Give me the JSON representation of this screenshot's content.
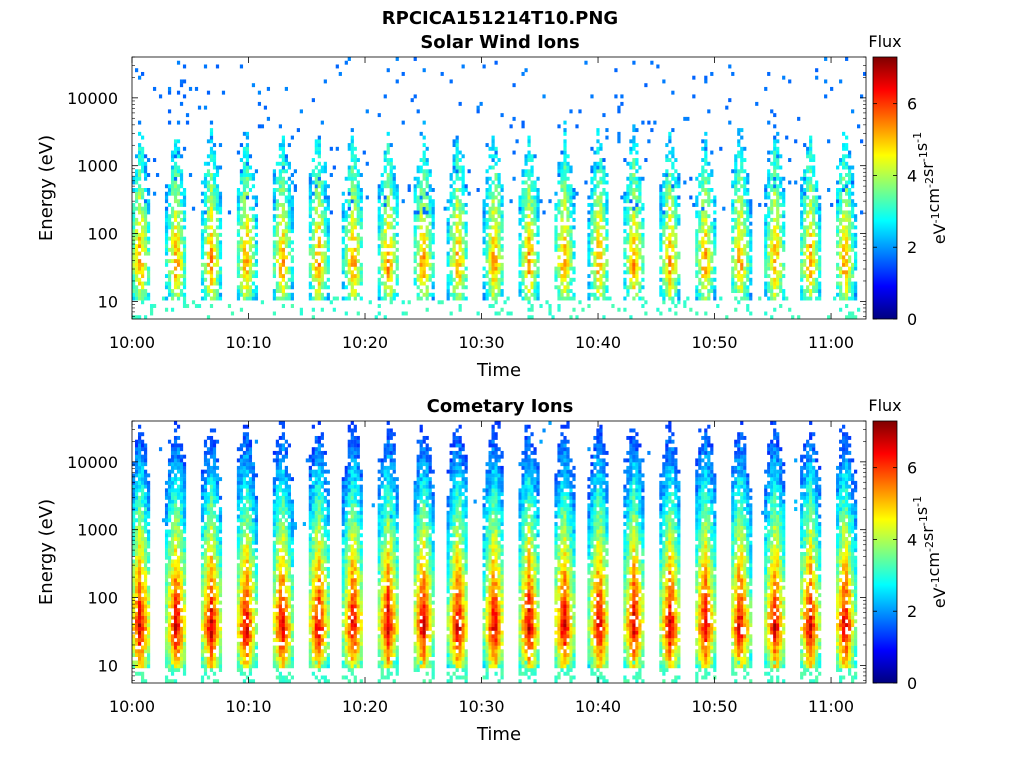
{
  "figure": {
    "filename_title": "RPCICA151214T10.PNG"
  },
  "colorbar": {
    "colormap": "jet",
    "label_parts": [
      "eV",
      "-1",
      "cm",
      "-2",
      "sr",
      "-1",
      "s",
      "-1"
    ],
    "title": "Flux",
    "range": [
      0,
      7.3
    ],
    "ticks": [
      "0",
      "2",
      "4",
      "6"
    ]
  },
  "chart_data": [
    {
      "type": "heatmap",
      "title": "Solar Wind Ions",
      "xlabel": "Time",
      "ylabel": "Energy (eV)",
      "x_ticks": [
        "10:00",
        "10:10",
        "10:20",
        "10:30",
        "10:40",
        "10:50",
        "11:00"
      ],
      "x_range_minutes_from_10_00": [
        0,
        63
      ],
      "y_scale": "log",
      "y_ticks": [
        "10",
        "100",
        "1000",
        "10000"
      ],
      "y_range": [
        5.5,
        40000
      ],
      "colorbar_label": "eV^-1 cm^-2 sr^-1 s^-1",
      "colorbar_title": "Flux",
      "scan_times_minutes": [
        0.7,
        3.8,
        6.8,
        9.8,
        12.9,
        16.0,
        19.0,
        22.0,
        25.0,
        28.0,
        31.1,
        34.1,
        37.1,
        40.1,
        43.1,
        46.2,
        49.2,
        52.2,
        55.2,
        58.2,
        61.2
      ],
      "peak_flux": 5.6,
      "background_flux": 1.6,
      "peak_energy_eV": 35
    },
    {
      "type": "heatmap",
      "title": "Cometary Ions",
      "xlabel": "Time",
      "ylabel": "Energy (eV)",
      "x_ticks": [
        "10:00",
        "10:10",
        "10:20",
        "10:30",
        "10:40",
        "10:50",
        "11:00"
      ],
      "x_range_minutes_from_10_00": [
        0,
        63
      ],
      "y_scale": "log",
      "y_ticks": [
        "10",
        "100",
        "1000",
        "10000"
      ],
      "y_range": [
        5.5,
        40000
      ],
      "colorbar_label": "eV^-1 cm^-2 sr^-1 s^-1",
      "colorbar_title": "Flux",
      "scan_times_minutes": [
        0.7,
        3.8,
        6.8,
        9.8,
        12.9,
        16.0,
        19.0,
        22.0,
        25.0,
        28.0,
        31.1,
        34.1,
        37.1,
        40.1,
        43.1,
        46.2,
        49.2,
        52.2,
        55.2,
        58.2,
        61.2
      ],
      "peak_flux": 6.9,
      "background_flux": 1.8,
      "peak_energy_eV": 35
    }
  ]
}
